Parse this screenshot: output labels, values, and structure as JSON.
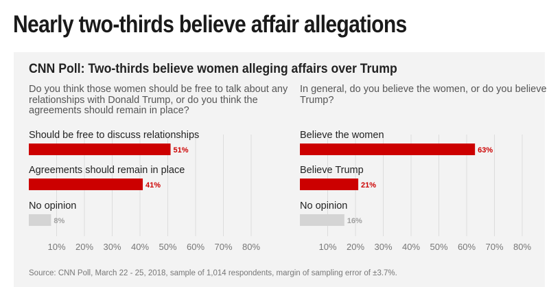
{
  "headline": "Nearly two-thirds believe affair allegations",
  "chart_title": "CNN Poll: Two-thirds believe women alleging affairs over Trump",
  "source": "Source: CNN Poll, March 22 - 25, 2018, sample of 1,014 respondents, margin of sampling error of ±3.7%.",
  "colors": {
    "primary": "#cc0000",
    "neutral": "#d4d4d4",
    "value_primary": "#cc0000",
    "value_neutral": "#a0a0a0"
  },
  "chart_data": [
    {
      "type": "bar",
      "question": "Do you think those women should be free to talk about any relationships with Donald Trump, or do you think the agreements should remain in place?",
      "categories": [
        "Should be free to discuss relationships",
        "Agreements should remain in place",
        "No opinion"
      ],
      "values": [
        51,
        41,
        8
      ],
      "value_labels": [
        "51%",
        "41%",
        "8%"
      ],
      "highlight": [
        true,
        true,
        false
      ],
      "xlim": [
        0,
        80
      ],
      "xticks": [
        10,
        20,
        30,
        40,
        50,
        60,
        70,
        80
      ],
      "xtick_labels": [
        "10%",
        "20%",
        "30%",
        "40%",
        "50%",
        "60%",
        "70%",
        "80%"
      ],
      "grid": true
    },
    {
      "type": "bar",
      "question": "In general, do you believe the women, or do you believe Trump?",
      "categories": [
        "Believe the women",
        "Believe Trump",
        "No opinion"
      ],
      "values": [
        63,
        21,
        16
      ],
      "value_labels": [
        "63%",
        "21%",
        "16%"
      ],
      "highlight": [
        true,
        true,
        false
      ],
      "xlim": [
        0,
        80
      ],
      "xticks": [
        10,
        20,
        30,
        40,
        50,
        60,
        70,
        80
      ],
      "xtick_labels": [
        "10%",
        "20%",
        "30%",
        "40%",
        "50%",
        "60%",
        "70%",
        "80%"
      ],
      "grid": true
    }
  ]
}
